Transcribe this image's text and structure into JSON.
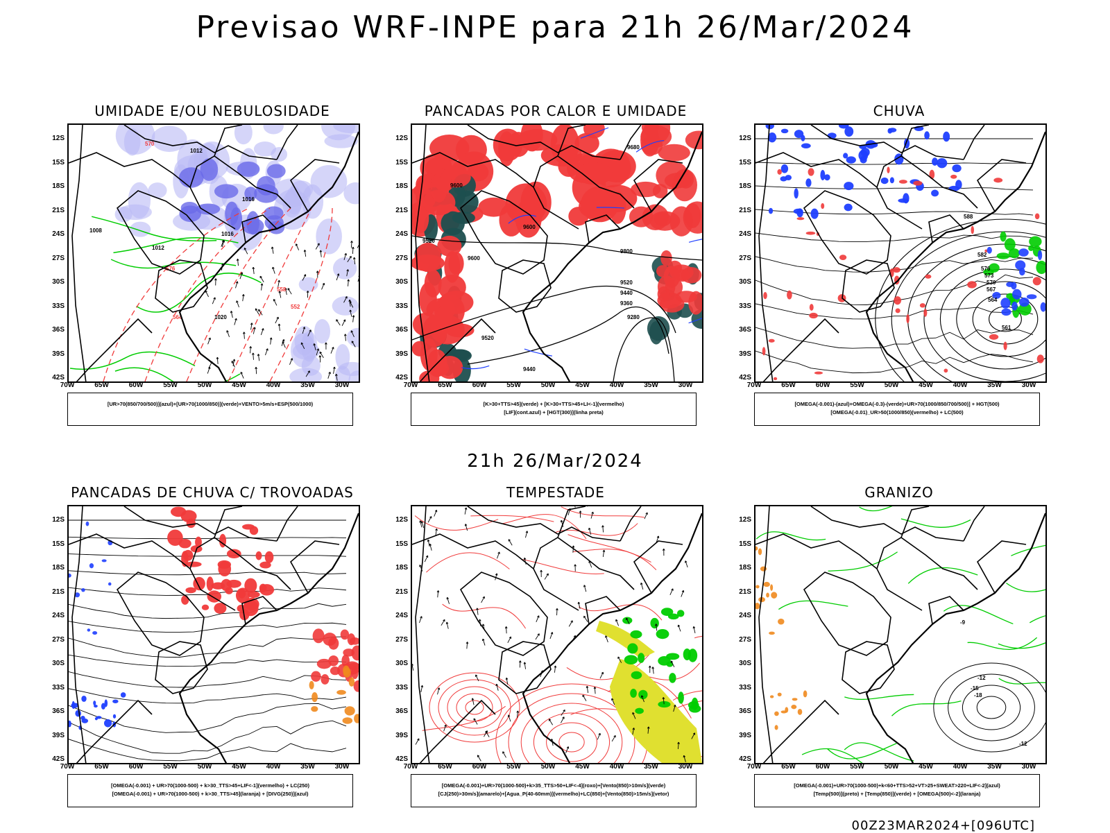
{
  "title": "Previsao WRF-INPE  para 21h 26/Mar/2024",
  "subtitle": "21h 26/Mar/2024",
  "footer": "00Z23MAR2024+[096UTC]",
  "lat_ticks": [
    "12S",
    "15S",
    "18S",
    "21S",
    "24S",
    "27S",
    "30S",
    "33S",
    "36S",
    "39S",
    "42S"
  ],
  "lon_ticks": [
    "70W",
    "65W",
    "60W",
    "55W",
    "50W",
    "45W",
    "40W",
    "35W",
    "30W"
  ],
  "panels": [
    {
      "title": "UMIDADE E/OU NEBULOSIDADE",
      "legend": [
        "[UR>70(850/700/500)](azul)+[UR>70(1000/850)](verde)+VENTO>5m/s+ESP(500/1000)"
      ],
      "labels": [
        "1012",
        "1016",
        "1020",
        "1008",
        "576",
        "570",
        "564",
        "558",
        "552"
      ]
    },
    {
      "title": "PANCADAS POR CALOR E UMIDADE",
      "legend": [
        "[K>30+TTS>45](verde) + [K>30+TTS>45+LI<-1](vermelho)",
        "[LIF](cont.azul) + [HGT(300)](linha preta)"
      ],
      "labels": [
        "9600",
        "9520",
        "9440",
        "9360",
        "9280",
        "9680",
        "9800"
      ]
    },
    {
      "title": "CHUVA",
      "legend": [
        "[OMEGA(-0.001)-(azul)+OMEGA(-0.3)-(verde)+UR>70(1000/850/700/500)] + HGT(500)",
        "[OMEGA(-0.01)_UR>50(1000/850)(vermelho) + LC(500)"
      ],
      "labels": [
        "588",
        "582",
        "576",
        "573",
        "570",
        "567",
        "564",
        "561"
      ]
    },
    {
      "title": "PANCADAS DE CHUVA C/ TROVOADAS",
      "legend": [
        "[OMEGA(-0.001) + UR>70(1000-500) + k>30_TTS>45+LIF<-1](vermelho) + LC(250)",
        "[OMEGA(-0.001) + UR>70(1000-500) + k>30_TTS>45](laranja) + [DIVG(250)](azul)"
      ],
      "labels": []
    },
    {
      "title": "TEMPESTADE",
      "legend": [
        "[OMEGA(-0.001)+UR>70(1000-500)+k>35_TTS>50+LIF<-4](roxo)+[Vento(850)>10m/s](verde)",
        "[CJ(250)>30m/s](amarelo)+[Agua_P(40-60mm)](vermelho)+LC(850)+[Vento(850)>15m/s](vetor)"
      ],
      "labels": []
    },
    {
      "title": "GRANIZO",
      "legend": [
        "[OMEGA(-0.001)+UR>70(1000-500)+k<60+TTS>52+VT>25+SWEAT>220+LIF<-2](azul)",
        "[Temp(500)](preto) + [Temp(850)](verde) + [OMEGA(500)<-2](laranja)"
      ],
      "labels": [
        "-12",
        "-15",
        "-18",
        "-12",
        "-9"
      ]
    }
  ],
  "colors": {
    "red": "#f03a3a",
    "green": "#00cc00",
    "blue": "#1f3fff",
    "lightblue": "#b9b9f5",
    "purple": "#6a6ae8",
    "darkteal": "#1e4f4f",
    "yellow": "#e0e030",
    "orange": "#f08a1e"
  }
}
